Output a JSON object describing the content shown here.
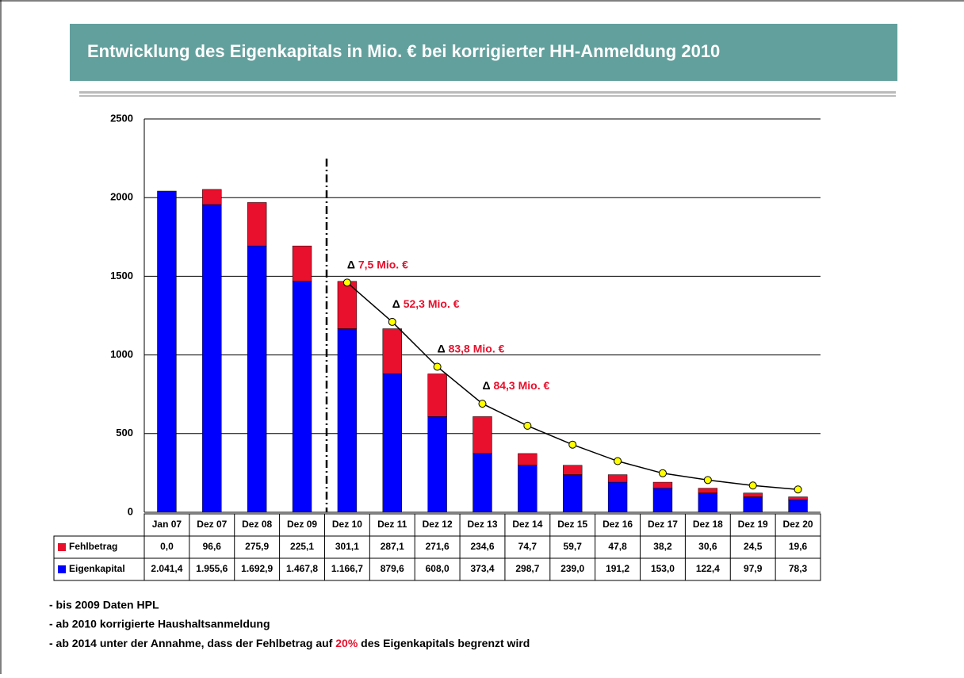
{
  "chart_data": {
    "type": "bar",
    "title": "Entwicklung des Eigenkapitals in Mio. € bei korrigierter HH-Anmeldung 2010",
    "categories": [
      "Jan 07",
      "Dez 07",
      "Dez 08",
      "Dez 09",
      "Dez 10",
      "Dez 11",
      "Dez 12",
      "Dez 13",
      "Dez 14",
      "Dez 15",
      "Dez 16",
      "Dez 17",
      "Dez 18",
      "Dez 19",
      "Dez 20"
    ],
    "series": [
      {
        "name": "Fehlbetrag",
        "color": "#e8102c",
        "values": [
          0.0,
          96.6,
          275.9,
          225.1,
          301.1,
          287.1,
          271.6,
          234.6,
          74.7,
          59.7,
          47.8,
          38.2,
          30.6,
          24.5,
          19.6
        ],
        "value_labels": [
          "0,0",
          "96,6",
          "275,9",
          "225,1",
          "301,1",
          "287,1",
          "271,6",
          "234,6",
          "74,7",
          "59,7",
          "47,8",
          "38,2",
          "30,6",
          "24,5",
          "19,6"
        ]
      },
      {
        "name": "Eigenkapital",
        "color": "#0000ff",
        "values": [
          2041.4,
          1955.6,
          1692.9,
          1467.8,
          1166.7,
          879.6,
          608.0,
          373.4,
          298.7,
          239.0,
          191.2,
          153.0,
          122.4,
          97.9,
          78.3
        ],
        "value_labels": [
          "2.041,4",
          "1.955,6",
          "1.692,9",
          "1.467,8",
          "1.166,7",
          "879,6",
          "608,0",
          "373,4",
          "298,7",
          "239,0",
          "191,2",
          "153,0",
          "122,4",
          "97,9",
          "78,3"
        ]
      }
    ],
    "trend": {
      "color": "#ffff00",
      "values": [
        null,
        null,
        null,
        null,
        1460,
        1210,
        925,
        690,
        550,
        430,
        325,
        248,
        205,
        170,
        145
      ]
    },
    "annotations": [
      {
        "symbol": "Δ",
        "text": "7,5 Mio. €"
      },
      {
        "symbol": "Δ",
        "text": "52,3 Mio. €"
      },
      {
        "symbol": "Δ",
        "text": "83,8 Mio. €"
      },
      {
        "symbol": "Δ",
        "text": "84,3 Mio. €"
      }
    ],
    "ylim": [
      0,
      2500
    ],
    "yticks": [
      0,
      500,
      1000,
      1500,
      2000,
      2500
    ],
    "grid": true,
    "notes": [
      "- bis 2009 Daten HPL",
      "- ab 2010 korrigierte Haushaltsanmeldung"
    ],
    "note_last": {
      "before": "- ab 2014 unter der Annahme, dass der Fehlbetrag auf ",
      "highlight": "20%",
      "after": " des Eigenkapitals begrenzt wird"
    }
  }
}
